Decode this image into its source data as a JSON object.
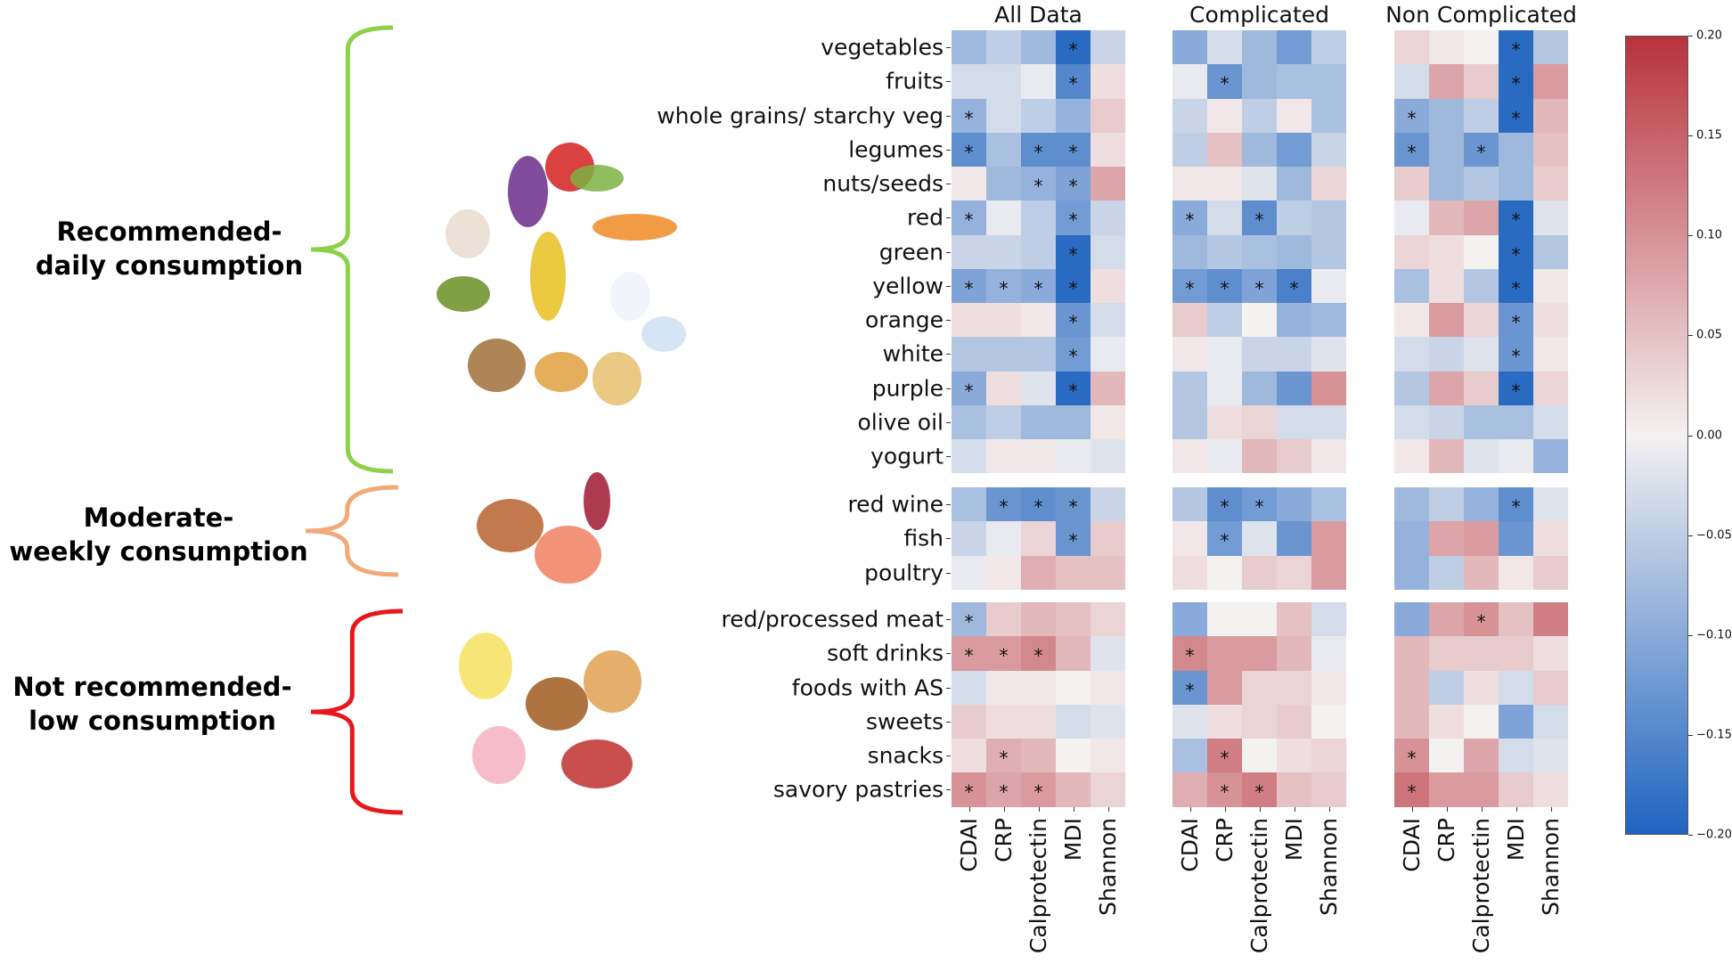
{
  "groups": [
    {
      "label_line1": "Recommended-",
      "label_line2": "daily consumption",
      "bracket_color": "#8dd14a"
    },
    {
      "label_line1": "Moderate-",
      "label_line2": "weekly consumption",
      "bracket_color": "#f2a97a"
    },
    {
      "label_line1": "Not recommended-",
      "label_line2": "low consumption",
      "bracket_color": "#e8171b"
    }
  ],
  "chart_data": {
    "type": "heatmap",
    "columns": [
      "CDAI",
      "CRP",
      "Calprotectin",
      "MDI",
      "Shannon"
    ],
    "row_groups": [
      [
        "vegetables",
        "fruits",
        "whole grains/ starchy veg",
        "legumes",
        "nuts/seeds",
        "red",
        "green",
        "yellow",
        "orange",
        "white",
        "purple",
        "olive oil",
        "yogurt"
      ],
      [
        "red wine",
        "fish",
        "poultry"
      ],
      [
        "red/processed meat",
        "soft drinks",
        "foods with AS",
        "sweets",
        "snacks",
        "savory pastries"
      ]
    ],
    "colorbar": {
      "range": [
        -0.2,
        0.2
      ],
      "ticks": [
        "0.20",
        "0.15",
        "0.10",
        "0.05",
        "0.00",
        "−0.05",
        "−0.10",
        "−0.15",
        "−0.20"
      ],
      "low_color": "#1f64c0",
      "mid_color": "#f4f1f1",
      "high_color": "#b8323c"
    },
    "significance_marker": "*",
    "panels": [
      {
        "title": "All Data",
        "values": [
          [
            -0.08,
            -0.05,
            -0.08,
            -0.19,
            -0.04
          ],
          [
            -0.03,
            -0.03,
            -0.01,
            -0.15,
            0.02
          ],
          [
            -0.09,
            -0.03,
            -0.05,
            -0.09,
            0.04
          ],
          [
            -0.14,
            -0.07,
            -0.14,
            -0.14,
            0.02
          ],
          [
            0.01,
            -0.08,
            -0.09,
            -0.11,
            0.08
          ],
          [
            -0.09,
            -0.01,
            -0.05,
            -0.12,
            -0.04
          ],
          [
            -0.04,
            -0.04,
            -0.05,
            -0.19,
            -0.03
          ],
          [
            -0.11,
            -0.09,
            -0.1,
            -0.19,
            0.02
          ],
          [
            0.02,
            0.02,
            0.01,
            -0.13,
            -0.03
          ],
          [
            -0.06,
            -0.06,
            -0.06,
            -0.12,
            -0.01
          ],
          [
            -0.1,
            0.02,
            -0.02,
            -0.19,
            0.06
          ],
          [
            -0.07,
            -0.05,
            -0.08,
            -0.08,
            0.01
          ],
          [
            -0.03,
            0.01,
            0.01,
            -0.01,
            -0.02
          ],
          [
            -0.07,
            -0.13,
            -0.14,
            -0.13,
            -0.04
          ],
          [
            -0.04,
            -0.01,
            0.03,
            -0.13,
            0.04
          ],
          [
            -0.01,
            0.01,
            0.07,
            0.05,
            0.05
          ],
          [
            -0.08,
            0.04,
            0.06,
            0.05,
            0.03
          ],
          [
            0.09,
            0.09,
            0.11,
            0.06,
            -0.02
          ],
          [
            -0.03,
            0.01,
            0.01,
            0.0,
            0.01
          ],
          [
            0.04,
            0.02,
            0.02,
            -0.03,
            -0.02
          ],
          [
            0.02,
            0.07,
            0.06,
            0.0,
            0.01
          ],
          [
            0.1,
            0.08,
            0.09,
            0.06,
            0.03
          ]
        ],
        "significant": [
          [
            0,
            0,
            0,
            1,
            0
          ],
          [
            0,
            0,
            0,
            1,
            0
          ],
          [
            1,
            0,
            0,
            0,
            0
          ],
          [
            1,
            0,
            1,
            1,
            0
          ],
          [
            0,
            0,
            1,
            1,
            0
          ],
          [
            1,
            0,
            0,
            1,
            0
          ],
          [
            0,
            0,
            0,
            1,
            0
          ],
          [
            1,
            1,
            1,
            1,
            0
          ],
          [
            0,
            0,
            0,
            1,
            0
          ],
          [
            0,
            0,
            0,
            1,
            0
          ],
          [
            1,
            0,
            0,
            1,
            0
          ],
          [
            0,
            0,
            0,
            0,
            0
          ],
          [
            0,
            0,
            0,
            0,
            0
          ],
          [
            0,
            1,
            1,
            1,
            0
          ],
          [
            0,
            0,
            0,
            1,
            0
          ],
          [
            0,
            0,
            0,
            0,
            0
          ],
          [
            1,
            0,
            0,
            0,
            0
          ],
          [
            1,
            1,
            1,
            0,
            0
          ],
          [
            0,
            0,
            0,
            0,
            0
          ],
          [
            0,
            0,
            0,
            0,
            0
          ],
          [
            0,
            1,
            0,
            0,
            0
          ],
          [
            1,
            1,
            1,
            0,
            0
          ]
        ]
      },
      {
        "title": "Complicated",
        "values": [
          [
            -0.1,
            -0.03,
            -0.08,
            -0.12,
            -0.05
          ],
          [
            -0.01,
            -0.13,
            -0.08,
            -0.07,
            -0.07
          ],
          [
            -0.04,
            0.01,
            -0.05,
            0.01,
            -0.07
          ],
          [
            -0.05,
            0.05,
            -0.08,
            -0.12,
            -0.04
          ],
          [
            0.01,
            0.01,
            -0.02,
            -0.08,
            0.03
          ],
          [
            -0.1,
            -0.03,
            -0.14,
            -0.05,
            -0.06
          ],
          [
            -0.08,
            -0.06,
            -0.07,
            -0.08,
            -0.06
          ],
          [
            -0.12,
            -0.14,
            -0.11,
            -0.16,
            -0.01
          ],
          [
            0.04,
            -0.05,
            0.0,
            -0.09,
            -0.08
          ],
          [
            0.01,
            -0.01,
            -0.04,
            -0.04,
            -0.02
          ],
          [
            -0.06,
            -0.01,
            -0.08,
            -0.13,
            0.1
          ],
          [
            -0.06,
            0.02,
            0.03,
            -0.03,
            -0.03
          ],
          [
            0.01,
            -0.01,
            0.06,
            0.04,
            0.01
          ],
          [
            -0.06,
            -0.14,
            -0.12,
            -0.1,
            -0.07
          ],
          [
            0.01,
            -0.12,
            -0.02,
            -0.13,
            0.09
          ],
          [
            0.02,
            0.0,
            0.04,
            0.03,
            0.09
          ],
          [
            -0.1,
            0.0,
            0.0,
            0.05,
            -0.03
          ],
          [
            0.11,
            0.09,
            0.09,
            0.06,
            -0.01
          ],
          [
            -0.13,
            0.09,
            0.03,
            0.03,
            0.01
          ],
          [
            -0.02,
            0.02,
            0.03,
            0.04,
            0.0
          ],
          [
            -0.07,
            0.12,
            0.0,
            0.02,
            0.03
          ],
          [
            0.07,
            0.1,
            0.12,
            0.05,
            0.04
          ]
        ],
        "significant": [
          [
            0,
            0,
            0,
            0,
            0
          ],
          [
            0,
            1,
            0,
            0,
            0
          ],
          [
            0,
            0,
            0,
            0,
            0
          ],
          [
            0,
            0,
            0,
            0,
            0
          ],
          [
            0,
            0,
            0,
            0,
            0
          ],
          [
            1,
            0,
            1,
            0,
            0
          ],
          [
            0,
            0,
            0,
            0,
            0
          ],
          [
            1,
            1,
            1,
            1,
            0
          ],
          [
            0,
            0,
            0,
            0,
            0
          ],
          [
            0,
            0,
            0,
            0,
            0
          ],
          [
            0,
            0,
            0,
            0,
            0
          ],
          [
            0,
            0,
            0,
            0,
            0
          ],
          [
            0,
            0,
            0,
            0,
            0
          ],
          [
            0,
            1,
            1,
            0,
            0
          ],
          [
            0,
            1,
            0,
            0,
            0
          ],
          [
            0,
            0,
            0,
            0,
            0
          ],
          [
            0,
            0,
            0,
            0,
            0
          ],
          [
            1,
            0,
            0,
            0,
            0
          ],
          [
            1,
            0,
            0,
            0,
            0
          ],
          [
            0,
            0,
            0,
            0,
            0
          ],
          [
            0,
            1,
            0,
            0,
            0
          ],
          [
            0,
            1,
            1,
            0,
            0
          ]
        ]
      },
      {
        "title": "Non Complicated",
        "values": [
          [
            0.03,
            0.01,
            0.0,
            -0.19,
            -0.06
          ],
          [
            -0.03,
            0.08,
            0.04,
            -0.19,
            0.09
          ],
          [
            -0.1,
            -0.08,
            -0.05,
            -0.19,
            0.06
          ],
          [
            -0.13,
            -0.08,
            -0.13,
            -0.08,
            0.05
          ],
          [
            0.04,
            -0.08,
            -0.06,
            -0.08,
            0.04
          ],
          [
            -0.01,
            0.06,
            0.08,
            -0.19,
            -0.02
          ],
          [
            0.03,
            0.02,
            0.0,
            -0.19,
            -0.06
          ],
          [
            -0.07,
            0.02,
            -0.06,
            -0.19,
            0.01
          ],
          [
            0.01,
            0.09,
            0.03,
            -0.13,
            0.02
          ],
          [
            -0.03,
            -0.04,
            -0.02,
            -0.13,
            0.01
          ],
          [
            -0.06,
            0.08,
            0.04,
            -0.19,
            0.03
          ],
          [
            -0.03,
            -0.04,
            -0.07,
            -0.07,
            -0.03
          ],
          [
            0.01,
            0.06,
            -0.02,
            -0.01,
            -0.09
          ],
          [
            -0.08,
            -0.05,
            -0.09,
            -0.14,
            -0.02
          ],
          [
            -0.09,
            0.08,
            0.09,
            -0.13,
            0.02
          ],
          [
            -0.09,
            -0.05,
            0.06,
            0.01,
            0.04
          ],
          [
            -0.1,
            0.08,
            0.1,
            0.05,
            0.12
          ],
          [
            0.06,
            0.04,
            0.04,
            0.04,
            0.02
          ],
          [
            0.06,
            -0.05,
            0.02,
            -0.03,
            0.04
          ],
          [
            0.06,
            0.02,
            0.0,
            -0.11,
            -0.03
          ],
          [
            0.1,
            0.0,
            0.08,
            -0.03,
            -0.02
          ],
          [
            0.13,
            0.09,
            0.09,
            0.04,
            0.02
          ]
        ],
        "significant": [
          [
            0,
            0,
            0,
            1,
            0
          ],
          [
            0,
            0,
            0,
            1,
            0
          ],
          [
            1,
            0,
            0,
            1,
            0
          ],
          [
            1,
            0,
            1,
            0,
            0
          ],
          [
            0,
            0,
            0,
            0,
            0
          ],
          [
            0,
            0,
            0,
            1,
            0
          ],
          [
            0,
            0,
            0,
            1,
            0
          ],
          [
            0,
            0,
            0,
            1,
            0
          ],
          [
            0,
            0,
            0,
            1,
            0
          ],
          [
            0,
            0,
            0,
            1,
            0
          ],
          [
            0,
            0,
            0,
            1,
            0
          ],
          [
            0,
            0,
            0,
            0,
            0
          ],
          [
            0,
            0,
            0,
            0,
            0
          ],
          [
            0,
            0,
            0,
            1,
            0
          ],
          [
            0,
            0,
            0,
            0,
            0
          ],
          [
            0,
            0,
            0,
            0,
            0
          ],
          [
            0,
            0,
            1,
            0,
            0
          ],
          [
            0,
            0,
            0,
            0,
            0
          ],
          [
            0,
            0,
            0,
            0,
            0
          ],
          [
            0,
            0,
            0,
            0,
            0
          ],
          [
            1,
            0,
            0,
            0,
            0
          ],
          [
            1,
            0,
            0,
            0,
            0
          ]
        ]
      }
    ]
  }
}
